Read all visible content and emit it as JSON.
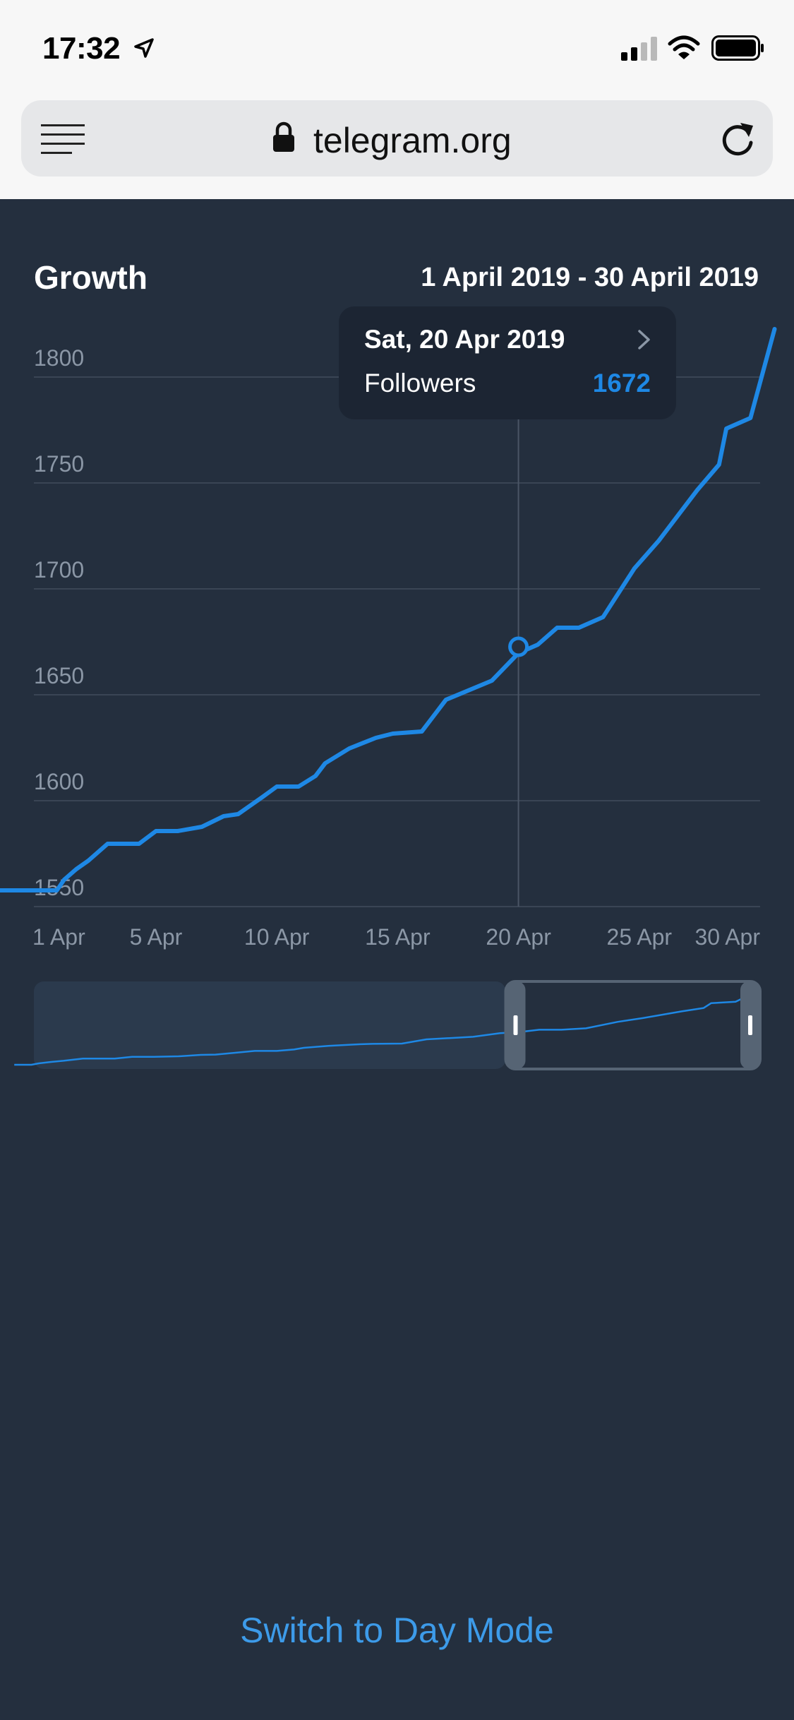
{
  "status_bar": {
    "time": "17:32",
    "icons": [
      "location-arrow-icon",
      "signal-icon",
      "wifi-icon",
      "battery-icon"
    ]
  },
  "browser": {
    "url": "telegram.org",
    "icons": [
      "menu-icon",
      "lock-icon",
      "reload-icon"
    ]
  },
  "header": {
    "title": "Growth",
    "date_range": "1 April 2019 - 30 April 2019"
  },
  "tooltip": {
    "date": "Sat, 20 Apr 2019",
    "series": "Followers",
    "value": "1672"
  },
  "colors": {
    "background": "#242f3e",
    "line": "#1e88e5",
    "grid": "#3a4555",
    "tick_label": "#8b97a6",
    "link": "#3d9be9"
  },
  "chart_data": {
    "type": "line",
    "title": "Growth",
    "xlabel": "",
    "ylabel": "",
    "ylim": [
      1545,
      1825
    ],
    "y_ticks": [
      1550,
      1600,
      1650,
      1700,
      1750,
      1800
    ],
    "x_tick_labels": [
      "1 Apr",
      "5 Apr",
      "10 Apr",
      "15 Apr",
      "20 Apr",
      "25 Apr",
      "30 Apr"
    ],
    "x_tick_days": [
      1,
      5,
      10,
      15,
      20,
      25,
      30
    ],
    "x_range_days": [
      1,
      30
    ],
    "grid": true,
    "series": [
      {
        "name": "Followers",
        "color": "#1e88e5",
        "x": [
          0.2,
          0.9,
          1.2,
          1.7,
          2.2,
          3,
          4.3,
          5,
          5.9,
          6.9,
          7.8,
          8.4,
          9.4,
          10,
          10.9,
          11.6,
          12,
          13,
          14.1,
          14.8,
          16,
          17,
          18.9,
          20,
          20.8,
          21.6,
          22.5,
          23.5,
          24.8,
          25.8,
          27.4,
          28.3,
          28.6,
          29.6,
          30.6
        ],
        "y": [
          1557,
          1557,
          1562,
          1567,
          1571,
          1579,
          1579,
          1585,
          1585,
          1587,
          1592,
          1593,
          1601,
          1606,
          1606,
          1611,
          1617,
          1624,
          1629,
          1631,
          1632,
          1647,
          1656,
          1669,
          1673,
          1681,
          1681,
          1686,
          1709,
          1722,
          1746,
          1758,
          1775,
          1780,
          1822
        ]
      }
    ],
    "highlight": {
      "x": 20,
      "y": 1672
    },
    "navigator": {
      "window": {
        "x_start": 20,
        "x_end": 30
      }
    }
  },
  "footer": {
    "switch_label": "Switch to Day Mode"
  }
}
